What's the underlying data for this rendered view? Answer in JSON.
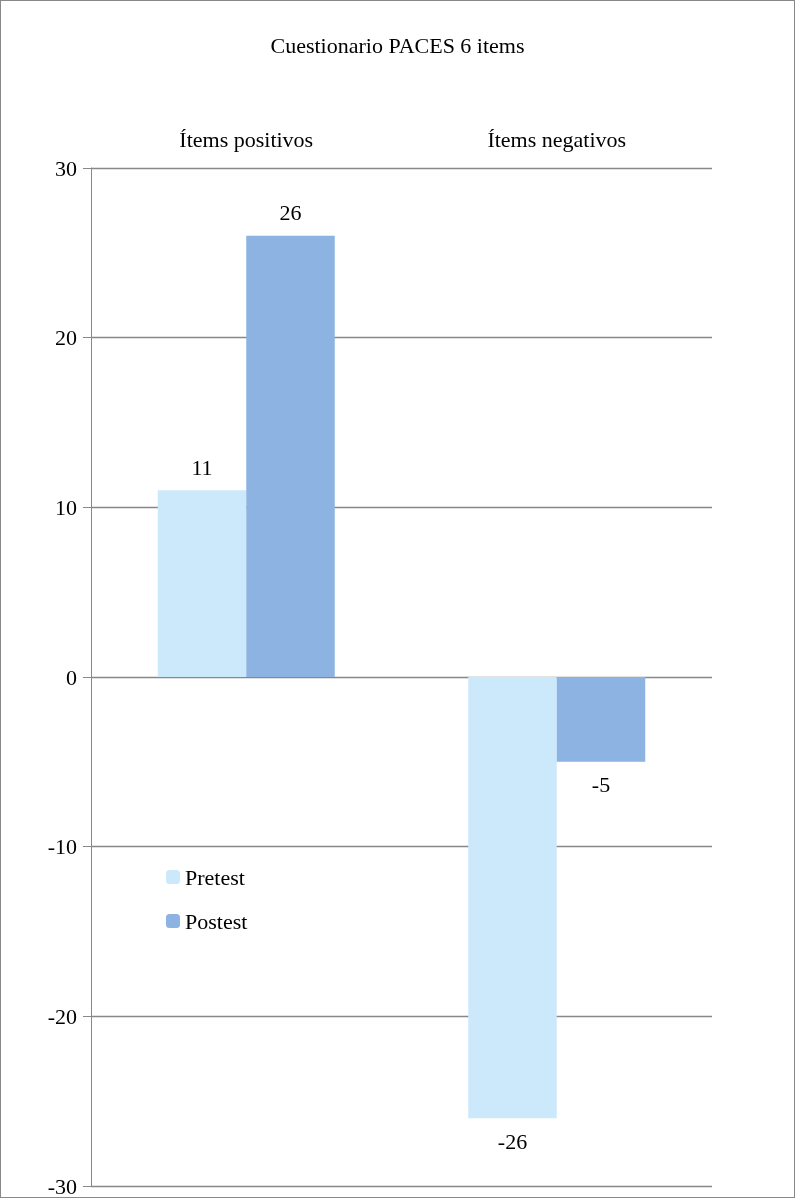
{
  "chart_data": {
    "type": "bar",
    "title": "Cuestionario PACES 6 items",
    "categories": [
      "Ítems positivos",
      "Ítems negativos"
    ],
    "series": [
      {
        "name": "Pretest",
        "color": "#cce9fb",
        "values": [
          11,
          -26
        ]
      },
      {
        "name": "Postest",
        "color": "#8db3e2",
        "values": [
          26,
          -5
        ]
      }
    ],
    "ylim": [
      -30,
      30
    ],
    "yticks": [
      -30,
      -20,
      -10,
      0,
      10,
      20,
      30
    ],
    "grid": "y",
    "legend": "left",
    "data_labels": true
  }
}
